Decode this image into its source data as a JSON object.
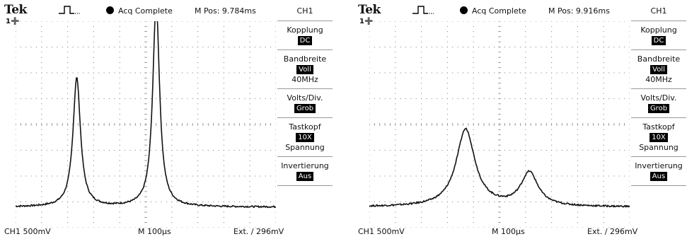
{
  "screens": [
    {
      "brand": "Tek",
      "acq_status": "Acq Complete",
      "m_pos": "M Pos: 9.784ms",
      "channel_marker": "1",
      "side_header": "CH1",
      "menus": [
        {
          "label": "Kopplung",
          "value": "DC",
          "extra": ""
        },
        {
          "label": "Bandbreite",
          "value": "Voll",
          "extra": "40MHz"
        },
        {
          "label": "Volts/Div.",
          "value": "Grob",
          "extra": ""
        },
        {
          "label": "Tastkopf",
          "value": "10X",
          "extra": "Spannung"
        },
        {
          "label": "Invertierung",
          "value": "Aus",
          "extra": ""
        }
      ],
      "ch_scale": "CH1  500mV",
      "timebase": "M 100µs",
      "trigger": "Ext. ∕ 296mV",
      "trace": {
        "baseline_div": -3.2,
        "peaks": [
          {
            "center_div": -2.65,
            "height_div": 5.0,
            "width_div": 0.22
          },
          {
            "center_div": 0.4,
            "height_div": 7.9,
            "width_div": 0.2
          }
        ]
      }
    },
    {
      "brand": "Tek",
      "acq_status": "Acq Complete",
      "m_pos": "M Pos: 9.916ms",
      "channel_marker": "1",
      "side_header": "CH1",
      "menus": [
        {
          "label": "Kopplung",
          "value": "DC",
          "extra": ""
        },
        {
          "label": "Bandbreite",
          "value": "Voll",
          "extra": "40MHz"
        },
        {
          "label": "Volts/Div.",
          "value": "Grob",
          "extra": ""
        },
        {
          "label": "Tastkopf",
          "value": "10X",
          "extra": "Spannung"
        },
        {
          "label": "Invertierung",
          "value": "Aus",
          "extra": ""
        }
      ],
      "ch_scale": "CH1  500mV",
      "timebase": "M 100µs",
      "trigger": "Ext. ∕ 296mV",
      "trace": {
        "baseline_div": -3.2,
        "peaks": [
          {
            "center_div": -1.3,
            "height_div": 3.0,
            "width_div": 0.55
          },
          {
            "center_div": 1.15,
            "height_div": 1.3,
            "width_div": 0.5
          }
        ]
      }
    }
  ]
}
